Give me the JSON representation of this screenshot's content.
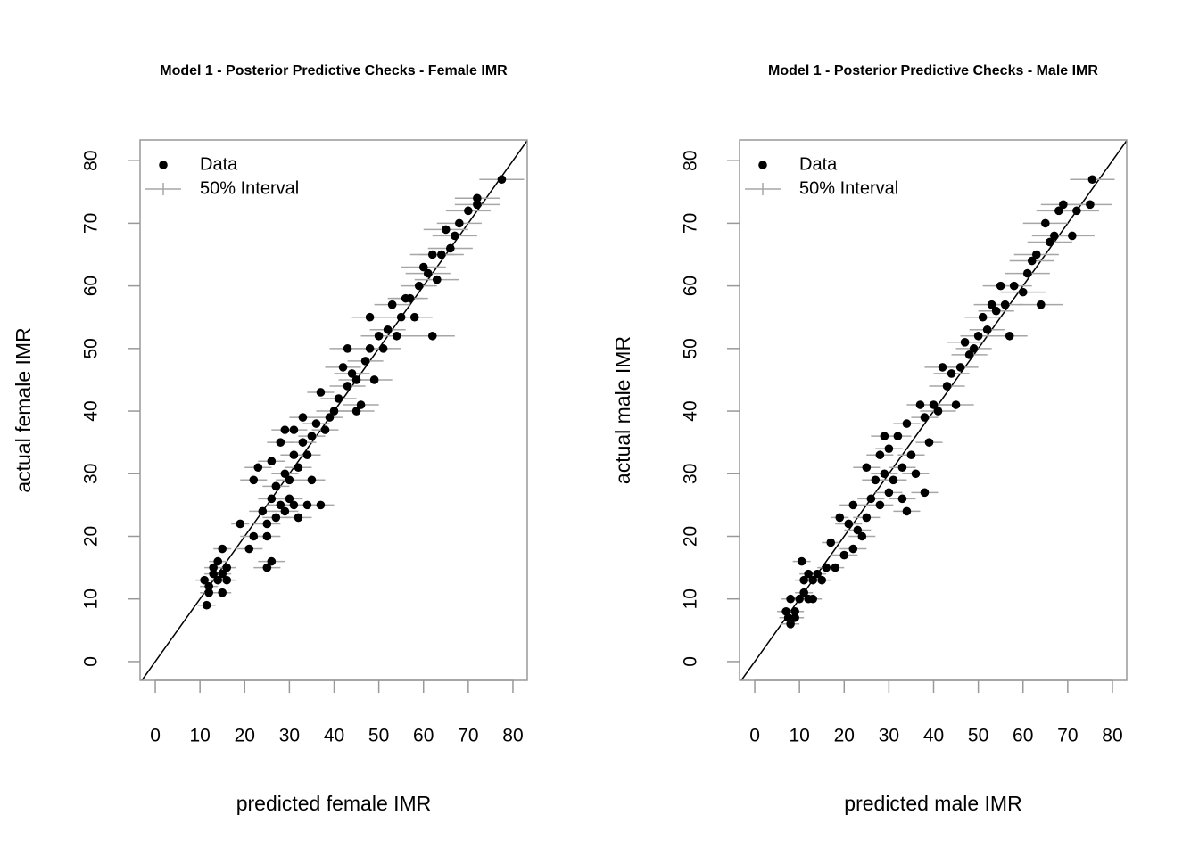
{
  "chart_data": [
    {
      "type": "scatter",
      "title": "Model 1 - Posterior Predictive Checks - Female IMR",
      "xlabel": "predicted female IMR",
      "ylabel": "actual female IMR",
      "xlim": [
        -3.4,
        83.2
      ],
      "ylim": [
        -3,
        83.3
      ],
      "xticks": [
        0,
        10,
        20,
        30,
        40,
        50,
        60,
        70,
        80
      ],
      "yticks": [
        0,
        10,
        20,
        30,
        40,
        50,
        60,
        70,
        80
      ],
      "identity_line": true,
      "legend": "top-left",
      "series": [
        {
          "name": "Data",
          "color": "#000000",
          "x": [
            11,
            11.5,
            12,
            12,
            13,
            13,
            14,
            14,
            15,
            15,
            15,
            16,
            16,
            19,
            21,
            22,
            22,
            23,
            24,
            25,
            25,
            25,
            26,
            26,
            26,
            27,
            27,
            28,
            28,
            29,
            29,
            29,
            30,
            30,
            31,
            31,
            31,
            32,
            32,
            33,
            33,
            34,
            34,
            35,
            35,
            36,
            37,
            37,
            38,
            39,
            40,
            41,
            42,
            43,
            43,
            44,
            45,
            45,
            46,
            47,
            48,
            48,
            49,
            50,
            51,
            52,
            53,
            54,
            55,
            56,
            57,
            58,
            59,
            60,
            61,
            62,
            62,
            63,
            64,
            65,
            66,
            67,
            68,
            70,
            72,
            72,
            77.5
          ],
          "values": [
            13,
            9,
            11,
            12,
            14,
            15,
            13,
            16,
            18,
            11,
            14,
            13,
            15,
            22,
            18,
            20,
            29,
            31,
            24,
            15,
            20,
            22,
            16,
            26,
            32,
            23,
            28,
            25,
            35,
            24,
            30,
            37,
            26,
            29,
            25,
            33,
            37,
            23,
            31,
            35,
            39,
            25,
            33,
            29,
            36,
            38,
            25,
            43,
            37,
            39,
            40,
            42,
            47,
            44,
            50,
            46,
            40,
            45,
            41,
            48,
            55,
            50,
            45,
            52,
            50,
            53,
            57,
            52,
            55,
            58,
            58,
            55,
            60,
            63,
            62,
            52,
            65,
            61,
            65,
            69,
            66,
            68,
            70,
            72,
            73,
            74,
            77
          ]
        },
        {
          "name": "50% Interval",
          "color": "#a6a6a6",
          "low": [
            9,
            9.5,
            10,
            10,
            11,
            11,
            12,
            12,
            13,
            13,
            13,
            14,
            14,
            17,
            18,
            19,
            19,
            20,
            21,
            22,
            22,
            22,
            23,
            23,
            23,
            24,
            24,
            25,
            25,
            26,
            26,
            26,
            27,
            27,
            28,
            28,
            28,
            29,
            29,
            30,
            30,
            31,
            31,
            32,
            32,
            33,
            34,
            34,
            35,
            36,
            36,
            37,
            38,
            39,
            39,
            40,
            41,
            41,
            42,
            43,
            44,
            44,
            45,
            46,
            47,
            48,
            49,
            50,
            51,
            52,
            53,
            54,
            55,
            55,
            56,
            57,
            57,
            58,
            59,
            60,
            61,
            62,
            63,
            65,
            67,
            67,
            72.5
          ],
          "high": [
            13,
            13.5,
            14,
            14,
            15,
            15,
            16,
            16,
            17,
            17,
            17,
            18,
            18,
            21,
            24,
            25,
            25,
            26,
            27,
            28,
            28,
            28,
            29,
            29,
            29,
            30,
            30,
            31,
            31,
            32,
            32,
            32,
            33,
            33,
            34,
            34,
            34,
            35,
            35,
            36,
            36,
            37,
            37,
            38,
            38,
            39,
            40,
            40,
            41,
            42,
            44,
            45,
            46,
            47,
            47,
            48,
            49,
            49,
            50,
            51,
            52,
            52,
            53,
            54,
            55,
            56,
            57,
            58,
            59,
            60,
            61,
            62,
            63,
            65,
            66,
            67,
            67,
            68,
            69,
            70,
            71,
            72,
            73,
            75,
            77,
            77,
            82.5
          ]
        }
      ]
    },
    {
      "type": "scatter",
      "title": "Model 1 - Posterior Predictive Checks - Male IMR",
      "xlabel": "predicted male IMR",
      "ylabel": "actual male IMR",
      "xlim": [
        -3.4,
        83.2
      ],
      "ylim": [
        -3,
        83.3
      ],
      "xticks": [
        0,
        10,
        20,
        30,
        40,
        50,
        60,
        70,
        80
      ],
      "yticks": [
        0,
        10,
        20,
        30,
        40,
        50,
        60,
        70,
        80
      ],
      "identity_line": true,
      "legend": "top-left",
      "series": [
        {
          "name": "Data",
          "color": "#000000",
          "x": [
            7,
            7.5,
            8,
            8,
            9,
            9,
            10,
            10.5,
            11,
            11,
            12,
            12,
            13,
            13,
            14,
            15,
            16,
            17,
            18,
            19,
            20,
            21,
            22,
            22,
            23,
            24,
            25,
            25,
            26,
            27,
            28,
            28,
            29,
            29,
            30,
            30,
            31,
            32,
            33,
            33,
            34,
            34,
            35,
            36,
            37,
            38,
            38,
            39,
            40,
            41,
            42,
            43,
            44,
            45,
            46,
            47,
            48,
            49,
            50,
            51,
            52,
            53,
            54,
            55,
            56,
            57,
            58,
            60,
            61,
            62,
            63,
            64,
            65,
            66,
            67,
            68,
            69,
            71,
            72,
            75,
            75.5
          ],
          "values": [
            8,
            7,
            6,
            10,
            7,
            8,
            10,
            16,
            11,
            13,
            14,
            10,
            10,
            13,
            14,
            13,
            15,
            19,
            15,
            23,
            17,
            22,
            18,
            25,
            21,
            20,
            23,
            31,
            26,
            29,
            25,
            33,
            36,
            30,
            27,
            34,
            29,
            36,
            26,
            31,
            24,
            38,
            33,
            30,
            41,
            27,
            39,
            35,
            41,
            40,
            47,
            44,
            46,
            41,
            47,
            51,
            49,
            50,
            52,
            55,
            53,
            57,
            56,
            60,
            57,
            52,
            60,
            59,
            62,
            64,
            65,
            57,
            70,
            67,
            68,
            72,
            73,
            68,
            72,
            73,
            77
          ]
        },
        {
          "name": "50% Interval",
          "color": "#a6a6a6",
          "low": [
            5,
            5.5,
            6,
            6,
            7,
            7,
            8,
            8.5,
            9,
            9,
            10,
            10,
            11,
            11,
            12,
            13,
            14,
            15,
            16,
            17,
            17,
            18,
            19,
            19,
            20,
            21,
            22,
            22,
            23,
            24,
            25,
            25,
            26,
            26,
            27,
            27,
            28,
            29,
            30,
            30,
            31,
            31,
            32,
            33,
            34,
            35,
            35,
            36,
            36,
            37,
            38,
            39,
            40,
            41,
            42,
            43,
            44,
            45,
            46,
            47,
            48,
            49,
            50,
            51,
            52,
            53,
            54,
            55,
            56,
            57,
            58,
            59,
            60,
            61,
            62,
            63,
            64,
            66,
            67,
            70,
            70.5
          ],
          "high": [
            9,
            9.5,
            10,
            10,
            11,
            11,
            12,
            12.5,
            13,
            13,
            14,
            14,
            15,
            15,
            16,
            17,
            18,
            19,
            20,
            21,
            23,
            24,
            25,
            25,
            26,
            27,
            28,
            28,
            29,
            30,
            31,
            31,
            32,
            32,
            33,
            33,
            34,
            35,
            36,
            36,
            37,
            37,
            38,
            39,
            40,
            41,
            41,
            42,
            44,
            45,
            46,
            47,
            48,
            49,
            50,
            51,
            52,
            53,
            54,
            55,
            56,
            57,
            58,
            59,
            60,
            61,
            62,
            65,
            66,
            67,
            68,
            69,
            70,
            71,
            72,
            73,
            74,
            76,
            77,
            80,
            80.5
          ]
        }
      ]
    }
  ]
}
